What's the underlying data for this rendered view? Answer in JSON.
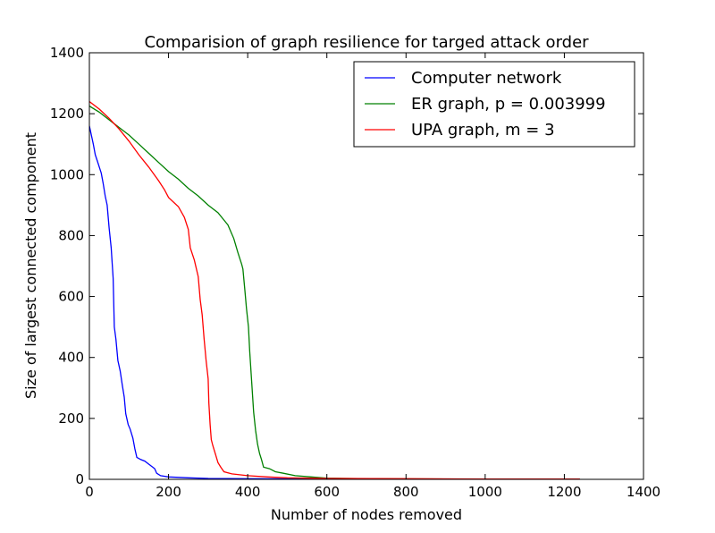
{
  "chart_data": {
    "type": "line",
    "title": "Comparision of graph resilience for targed attack order",
    "xlabel": "Number of nodes removed",
    "ylabel": "Size of largest connected component",
    "xlim": [
      0,
      1400
    ],
    "ylim": [
      0,
      1400
    ],
    "xticks": [
      0,
      200,
      400,
      600,
      800,
      1000,
      1200,
      1400
    ],
    "yticks": [
      0,
      200,
      400,
      600,
      800,
      1000,
      1200,
      1400
    ],
    "grid": false,
    "legend_position": "top-right",
    "series": [
      {
        "name": "Computer network",
        "color": "#0000ff",
        "points": [
          [
            0,
            1160
          ],
          [
            5,
            1130
          ],
          [
            10,
            1100
          ],
          [
            15,
            1065
          ],
          [
            20,
            1045
          ],
          [
            25,
            1025
          ],
          [
            30,
            1005
          ],
          [
            35,
            970
          ],
          [
            40,
            930
          ],
          [
            45,
            900
          ],
          [
            50,
            825
          ],
          [
            55,
            760
          ],
          [
            60,
            660
          ],
          [
            63,
            500
          ],
          [
            67,
            460
          ],
          [
            72,
            390
          ],
          [
            78,
            355
          ],
          [
            83,
            310
          ],
          [
            88,
            270
          ],
          [
            92,
            215
          ],
          [
            98,
            180
          ],
          [
            103,
            165
          ],
          [
            110,
            135
          ],
          [
            115,
            100
          ],
          [
            120,
            72
          ],
          [
            130,
            65
          ],
          [
            140,
            60
          ],
          [
            150,
            50
          ],
          [
            160,
            40
          ],
          [
            165,
            35
          ],
          [
            170,
            20
          ],
          [
            180,
            12
          ],
          [
            200,
            8
          ],
          [
            250,
            5
          ],
          [
            300,
            3
          ],
          [
            400,
            2
          ],
          [
            600,
            1
          ],
          [
            900,
            1
          ],
          [
            1239,
            1
          ]
        ]
      },
      {
        "name": "ER graph, p = 0.003999",
        "color": "#008000",
        "points": [
          [
            0,
            1225
          ],
          [
            25,
            1205
          ],
          [
            50,
            1180
          ],
          [
            75,
            1155
          ],
          [
            100,
            1130
          ],
          [
            125,
            1100
          ],
          [
            150,
            1070
          ],
          [
            175,
            1040
          ],
          [
            200,
            1010
          ],
          [
            225,
            985
          ],
          [
            250,
            955
          ],
          [
            275,
            930
          ],
          [
            300,
            900
          ],
          [
            325,
            875
          ],
          [
            350,
            835
          ],
          [
            365,
            790
          ],
          [
            375,
            745
          ],
          [
            385,
            705
          ],
          [
            388,
            690
          ],
          [
            393,
            620
          ],
          [
            397,
            560
          ],
          [
            402,
            500
          ],
          [
            405,
            420
          ],
          [
            410,
            320
          ],
          [
            415,
            220
          ],
          [
            420,
            160
          ],
          [
            425,
            115
          ],
          [
            430,
            85
          ],
          [
            435,
            65
          ],
          [
            440,
            40
          ],
          [
            455,
            35
          ],
          [
            470,
            25
          ],
          [
            490,
            20
          ],
          [
            520,
            12
          ],
          [
            560,
            8
          ],
          [
            600,
            4
          ],
          [
            700,
            2
          ],
          [
            900,
            1
          ],
          [
            1239,
            1
          ]
        ]
      },
      {
        "name": "UPA graph, m = 3",
        "color": "#ff0000",
        "points": [
          [
            0,
            1240
          ],
          [
            25,
            1215
          ],
          [
            50,
            1185
          ],
          [
            75,
            1150
          ],
          [
            100,
            1110
          ],
          [
            125,
            1065
          ],
          [
            150,
            1025
          ],
          [
            175,
            980
          ],
          [
            190,
            950
          ],
          [
            200,
            925
          ],
          [
            225,
            895
          ],
          [
            240,
            860
          ],
          [
            250,
            820
          ],
          [
            255,
            760
          ],
          [
            265,
            720
          ],
          [
            275,
            665
          ],
          [
            280,
            590
          ],
          [
            285,
            540
          ],
          [
            290,
            460
          ],
          [
            295,
            390
          ],
          [
            300,
            330
          ],
          [
            302,
            250
          ],
          [
            305,
            180
          ],
          [
            308,
            130
          ],
          [
            312,
            110
          ],
          [
            318,
            85
          ],
          [
            325,
            55
          ],
          [
            332,
            40
          ],
          [
            340,
            25
          ],
          [
            360,
            18
          ],
          [
            400,
            12
          ],
          [
            450,
            8
          ],
          [
            500,
            5
          ],
          [
            600,
            3
          ],
          [
            800,
            2
          ],
          [
            1000,
            1
          ],
          [
            1239,
            1
          ]
        ]
      }
    ]
  }
}
